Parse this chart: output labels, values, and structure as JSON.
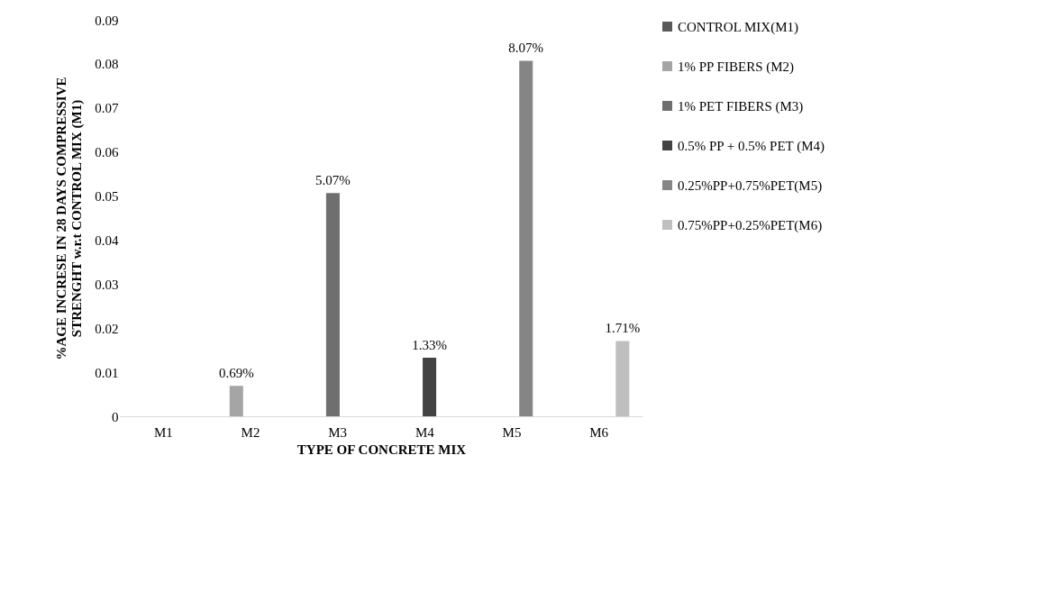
{
  "chart_data": {
    "type": "bar",
    "xlabel": "TYPE OF CONCRETE MIX",
    "ylabel": "%AGE  INCRESE IN 28 DAYS COMPRESSIVE\nSTRENGHT w.r.t CONTROL MIX (M1)",
    "categories": [
      "M1",
      "M2",
      "M3",
      "M4",
      "M5",
      "M6"
    ],
    "series": [
      {
        "name": "CONTROL MIX(M1)",
        "color": "#595959",
        "values": [
          0,
          null,
          null,
          null,
          null,
          null
        ],
        "value_labels": [
          null,
          null,
          null,
          null,
          null,
          null
        ]
      },
      {
        "name": "1% PP FIBERS (M2)",
        "color": "#a5a5a5",
        "values": [
          null,
          0.0069,
          null,
          null,
          null,
          null
        ],
        "value_labels": [
          null,
          "0.69%",
          null,
          null,
          null,
          null
        ]
      },
      {
        "name": "1% PET FIBERS (M3)",
        "color": "#6f6f6f",
        "values": [
          null,
          null,
          0.0507,
          null,
          null,
          null
        ],
        "value_labels": [
          null,
          null,
          "5.07%",
          null,
          null,
          null
        ]
      },
      {
        "name": "0.5% PP + 0.5% PET (M4)",
        "color": "#434343",
        "values": [
          null,
          null,
          null,
          0.0133,
          null,
          null
        ],
        "value_labels": [
          null,
          null,
          null,
          "1.33%",
          null,
          null
        ]
      },
      {
        "name": "0.25%PP+0.75%PET(M5)",
        "color": "#858585",
        "values": [
          null,
          null,
          null,
          null,
          0.0807,
          null
        ],
        "value_labels": [
          null,
          null,
          null,
          null,
          "8.07%",
          null
        ]
      },
      {
        "name": "0.75%PP+0.25%PET(M6)",
        "color": "#bfbfbf",
        "values": [
          null,
          null,
          null,
          null,
          null,
          0.0171
        ],
        "value_labels": [
          null,
          null,
          null,
          null,
          null,
          "1.71%"
        ]
      }
    ],
    "ylim": [
      0,
      0.09
    ],
    "yticks": [
      0,
      0.01,
      0.02,
      0.03,
      0.04,
      0.05,
      0.06,
      0.07,
      0.08,
      0.09
    ],
    "grid": false,
    "legend": "right"
  }
}
